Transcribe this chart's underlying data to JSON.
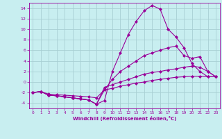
{
  "xlabel": "Windchill (Refroidissement éolien,°C)",
  "ylabel": "",
  "bg_color": "#c8eef0",
  "grid_color": "#a8cfd4",
  "line_color": "#990099",
  "xlim": [
    -0.5,
    23.5
  ],
  "ylim": [
    -5,
    15
  ],
  "xticks": [
    0,
    1,
    2,
    3,
    4,
    5,
    6,
    7,
    8,
    9,
    10,
    11,
    12,
    13,
    14,
    15,
    16,
    17,
    18,
    19,
    20,
    21,
    22,
    23
  ],
  "yticks": [
    -4,
    -2,
    0,
    2,
    4,
    6,
    8,
    10,
    12,
    14
  ],
  "line1_x": [
    0,
    1,
    2,
    3,
    4,
    5,
    6,
    7,
    8,
    9,
    10,
    11,
    12,
    13,
    14,
    15,
    16,
    17,
    18,
    19,
    20,
    21,
    22,
    23
  ],
  "line1_y": [
    -2,
    -1.8,
    -2.5,
    -2.6,
    -2.8,
    -3.0,
    -3.2,
    -3.4,
    -4.2,
    -3.5,
    2.0,
    5.5,
    9.0,
    11.5,
    13.5,
    14.5,
    13.8,
    10.0,
    8.5,
    6.5,
    3.5,
    2.0,
    1.0,
    1.0
  ],
  "line2_x": [
    0,
    1,
    2,
    3,
    4,
    5,
    6,
    7,
    8,
    9,
    10,
    11,
    12,
    13,
    14,
    15,
    16,
    17,
    18,
    19,
    20,
    21,
    22,
    23
  ],
  "line2_y": [
    -2,
    -1.8,
    -2.5,
    -2.6,
    -2.8,
    -3.0,
    -3.2,
    -3.4,
    -4.2,
    -1.5,
    0.5,
    2.0,
    3.0,
    4.0,
    5.0,
    5.5,
    6.0,
    6.5,
    6.8,
    5.0,
    4.5,
    4.8,
    2.0,
    1.0
  ],
  "line3_x": [
    0,
    1,
    2,
    3,
    4,
    5,
    6,
    7,
    8,
    9,
    10,
    11,
    12,
    13,
    14,
    15,
    16,
    17,
    18,
    19,
    20,
    21,
    22,
    23
  ],
  "line3_y": [
    -2,
    -1.8,
    -2.5,
    -2.6,
    -2.8,
    -3.0,
    -3.2,
    -3.4,
    -4.2,
    -1.0,
    -0.5,
    0.0,
    0.5,
    1.0,
    1.5,
    1.8,
    2.0,
    2.3,
    2.5,
    2.8,
    3.0,
    2.8,
    2.0,
    1.0
  ],
  "line4_x": [
    0,
    1,
    2,
    3,
    4,
    5,
    6,
    7,
    8,
    9,
    10,
    11,
    12,
    13,
    14,
    15,
    16,
    17,
    18,
    19,
    20,
    21,
    22,
    23
  ],
  "line4_y": [
    -2,
    -1.8,
    -2.3,
    -2.4,
    -2.5,
    -2.6,
    -2.7,
    -2.8,
    -3.0,
    -1.5,
    -1.2,
    -0.8,
    -0.5,
    -0.2,
    0.0,
    0.3,
    0.5,
    0.7,
    0.9,
    1.0,
    1.1,
    1.1,
    1.0,
    1.0
  ],
  "marker": "D",
  "markersize": 2.0,
  "linewidth": 0.8
}
